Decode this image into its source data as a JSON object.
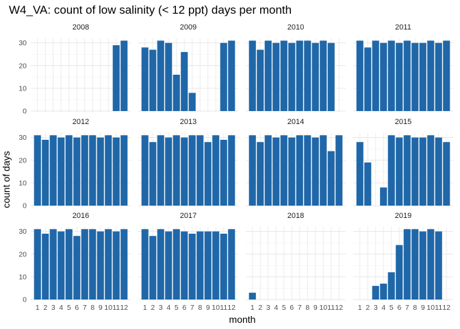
{
  "chart_data": {
    "type": "bar",
    "title": "W4_VA: count of low salinity (< 12 ppt) days per month",
    "xlabel": "month",
    "ylabel": "count of days",
    "categories": [
      "1",
      "2",
      "3",
      "4",
      "5",
      "6",
      "7",
      "8",
      "9",
      "10",
      "11",
      "12"
    ],
    "ylim": [
      0,
      32
    ],
    "yticks": [
      0,
      10,
      20,
      30
    ],
    "grid": true,
    "bar_color": "#1f67a8",
    "panels": [
      {
        "name": "2008",
        "values": [
          null,
          null,
          null,
          null,
          null,
          null,
          null,
          null,
          null,
          null,
          29,
          31
        ]
      },
      {
        "name": "2009",
        "values": [
          28,
          27,
          31,
          30,
          16,
          26,
          8,
          null,
          null,
          null,
          30,
          31
        ]
      },
      {
        "name": "2010",
        "values": [
          31,
          27,
          31,
          30,
          31,
          30,
          31,
          31,
          30,
          31,
          30,
          null
        ]
      },
      {
        "name": "2011",
        "values": [
          31,
          28,
          31,
          30,
          31,
          30,
          31,
          30,
          30,
          31,
          30,
          31
        ]
      },
      {
        "name": "2012",
        "values": [
          31,
          29,
          31,
          30,
          31,
          30,
          31,
          31,
          30,
          31,
          30,
          31
        ]
      },
      {
        "name": "2013",
        "values": [
          31,
          28,
          31,
          30,
          31,
          30,
          31,
          31,
          28,
          31,
          29,
          31
        ]
      },
      {
        "name": "2014",
        "values": [
          31,
          28,
          31,
          30,
          31,
          30,
          31,
          31,
          30,
          31,
          24,
          31
        ]
      },
      {
        "name": "2015",
        "values": [
          28,
          19,
          null,
          8,
          31,
          30,
          31,
          30,
          30,
          31,
          30,
          28
        ]
      },
      {
        "name": "2016",
        "values": [
          31,
          29,
          31,
          30,
          31,
          28,
          31,
          31,
          30,
          31,
          30,
          31
        ]
      },
      {
        "name": "2017",
        "values": [
          31,
          28,
          31,
          30,
          31,
          30,
          29,
          30,
          30,
          30,
          29,
          31
        ]
      },
      {
        "name": "2018",
        "values": [
          3,
          null,
          null,
          null,
          null,
          null,
          null,
          null,
          null,
          null,
          null,
          null
        ]
      },
      {
        "name": "2019",
        "values": [
          null,
          null,
          6,
          7,
          12,
          24,
          31,
          31,
          30,
          31,
          30,
          null
        ]
      }
    ]
  }
}
